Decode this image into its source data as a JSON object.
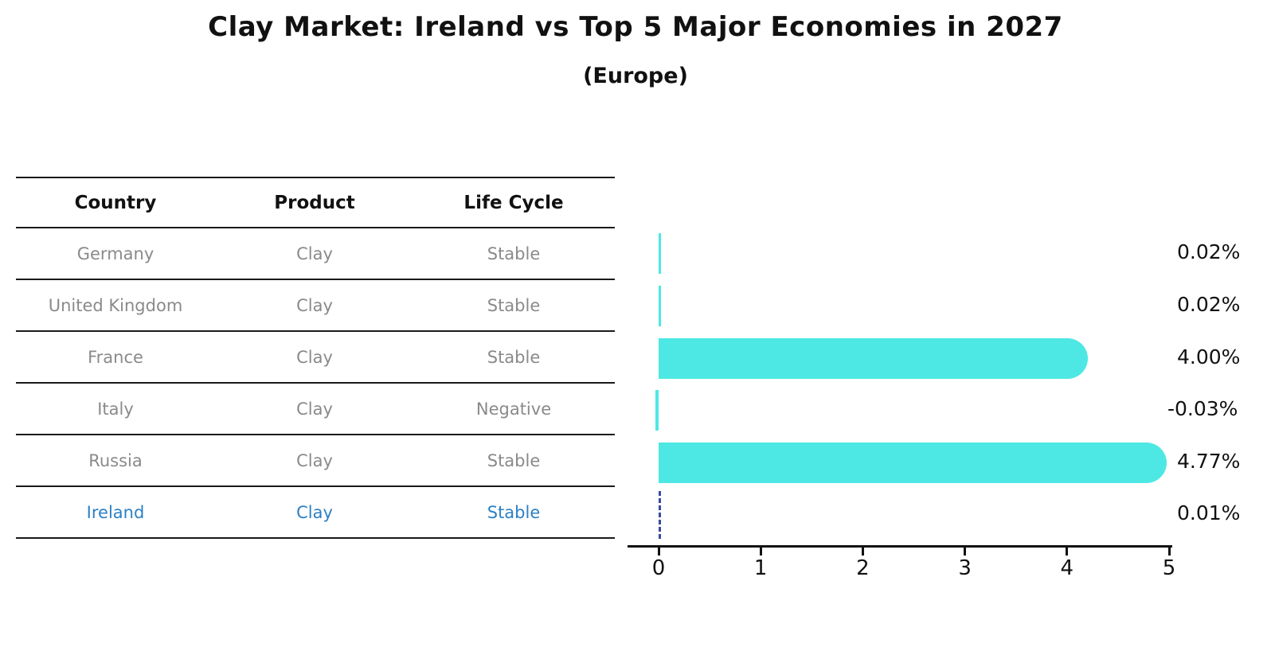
{
  "header": {
    "title": "Clay Market: Ireland vs Top 5 Major Economies in 2027",
    "subtitle": "(Europe)"
  },
  "table": {
    "columns": [
      "Country",
      "Product",
      "Life Cycle"
    ],
    "rows": [
      {
        "country": "Germany",
        "product": "Clay",
        "life_cycle": "Stable",
        "highlight": false
      },
      {
        "country": "United Kingdom",
        "product": "Clay",
        "life_cycle": "Stable",
        "highlight": false
      },
      {
        "country": "France",
        "product": "Clay",
        "life_cycle": "Stable",
        "highlight": false
      },
      {
        "country": "Italy",
        "product": "Clay",
        "life_cycle": "Negative",
        "highlight": false
      },
      {
        "country": "Russia",
        "product": "Clay",
        "life_cycle": "Stable",
        "highlight": false
      },
      {
        "country": "Ireland",
        "product": "Clay",
        "life_cycle": "Stable",
        "highlight": true
      }
    ]
  },
  "chart_data": {
    "type": "bar",
    "orientation": "horizontal",
    "title": "Clay Market: Ireland vs Top 5 Major Economies in 2027 (Europe)",
    "categories": [
      "Germany",
      "United Kingdom",
      "France",
      "Italy",
      "Russia",
      "Ireland"
    ],
    "values": [
      0.02,
      0.02,
      4.0,
      -0.03,
      4.77,
      0.01
    ],
    "value_labels": [
      "0.02%",
      "0.02%",
      "4.00%",
      "-0.03%",
      "4.77%",
      "0.01%"
    ],
    "x_ticks": [
      "0",
      "1",
      "2",
      "3",
      "4",
      "5"
    ],
    "xlim": [
      0,
      5
    ],
    "grid": false,
    "legend": false,
    "highlight_country": "Ireland",
    "bar_color": "#4de8e4",
    "highlight_marker_color": "#3a4a9f",
    "highlight_text_color": "#2d80c4"
  }
}
